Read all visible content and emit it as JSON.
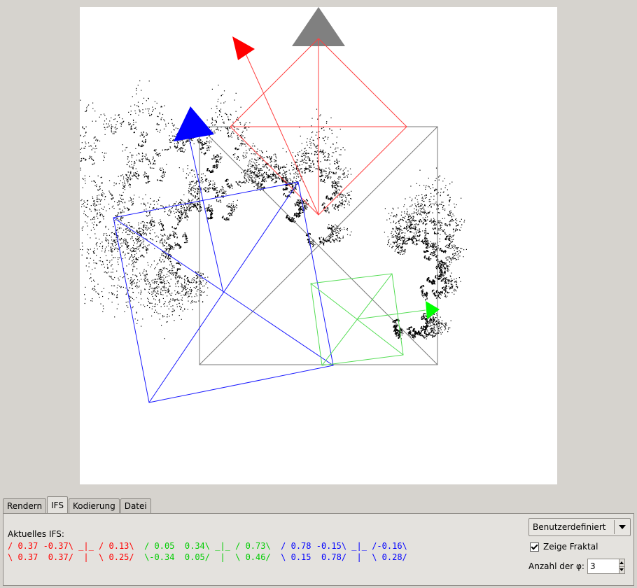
{
  "tabs": [
    {
      "label": "Rendern",
      "active": false
    },
    {
      "label": "IFS",
      "active": true
    },
    {
      "label": "Kodierung",
      "active": false
    },
    {
      "label": "Datei",
      "active": false
    }
  ],
  "ifs_panel": {
    "title": "Aktuelles IFS:",
    "colors": {
      "red": "#ff0000",
      "green": "#00cc00",
      "blue": "#0000ff"
    },
    "maps": [
      {
        "color": "red",
        "line1": "/ 0.37 -0.37\\ _|_ / 0.13\\",
        "line2": "\\ 0.37  0.37/  |  \\ 0.25/"
      },
      {
        "color": "green",
        "line1": "/ 0.05  0.34\\ _|_ / 0.73\\",
        "line2": "\\-0.34  0.05/  |  \\ 0.46/"
      },
      {
        "color": "blue",
        "line1": "/ 0.78 -0.15\\ _|_ /-0.16\\",
        "line2": "\\ 0.15  0.78/  |  \\ 0.28/"
      }
    ]
  },
  "controls": {
    "preset_label": "Benutzerdefiniert",
    "show_fractal_label": "Zeige Fraktal",
    "show_fractal_checked": true,
    "phi_count_label": "Anzahl der φ:",
    "phi_count_value": "3"
  },
  "canvas": {
    "background": "#ffffff",
    "handle_colors": {
      "gray": "#808080",
      "red": "#ff0000",
      "blue": "#0000ff",
      "green": "#00ff00"
    }
  }
}
